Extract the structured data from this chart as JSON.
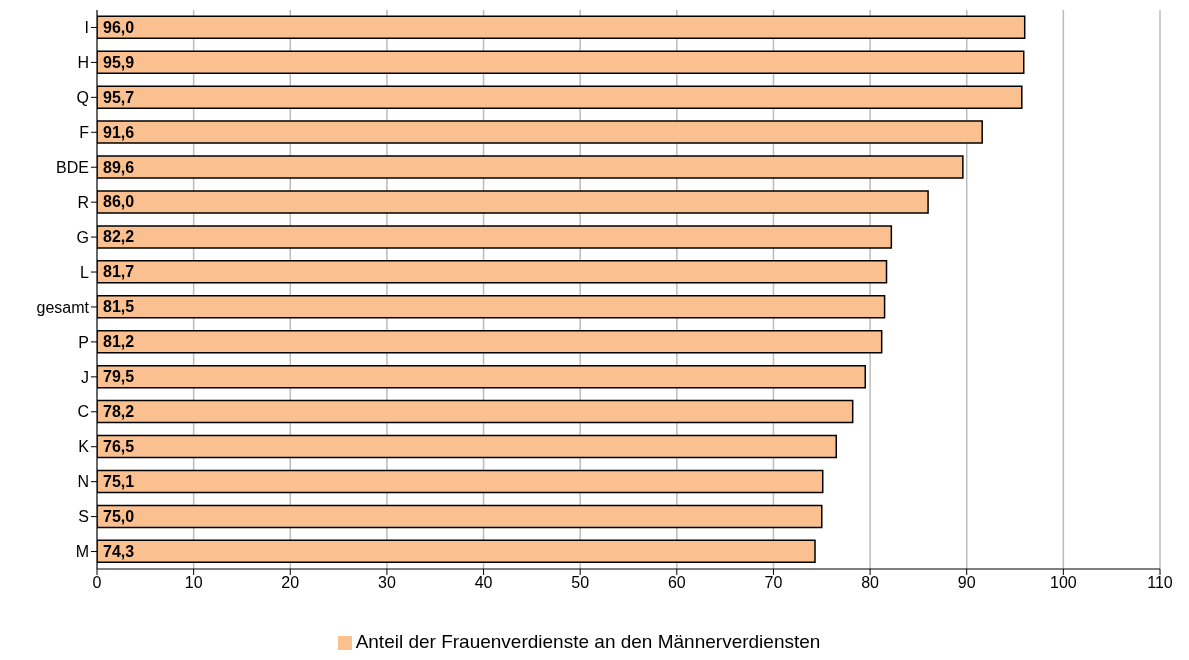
{
  "chart_data": {
    "type": "bar",
    "orientation": "horizontal",
    "categories": [
      "I",
      "H",
      "Q",
      "F",
      "BDE",
      "R",
      "G",
      "L",
      "gesamt",
      "P",
      "J",
      "C",
      "K",
      "N",
      "S",
      "M"
    ],
    "series": [
      {
        "name": "Anteil der Frauenverdienste an den Männerverdiensten",
        "color": "#fac090",
        "values": [
          96.0,
          95.9,
          95.7,
          91.6,
          89.6,
          86.0,
          82.2,
          81.7,
          81.5,
          81.2,
          79.5,
          78.2,
          76.5,
          75.1,
          75.0,
          74.3
        ],
        "value_labels": [
          "96,0",
          "95,9",
          "95,7",
          "91,6",
          "89,6",
          "86,0",
          "82,2",
          "81,7",
          "81,5",
          "81,2",
          "79,5",
          "78,2",
          "76,5",
          "75,1",
          "75,0",
          "74,3"
        ]
      }
    ],
    "xlim": [
      0,
      110
    ],
    "xticks": [
      0,
      10,
      20,
      30,
      40,
      50,
      60,
      70,
      80,
      90,
      100,
      110
    ],
    "grid": "x",
    "legend": "bottom"
  }
}
